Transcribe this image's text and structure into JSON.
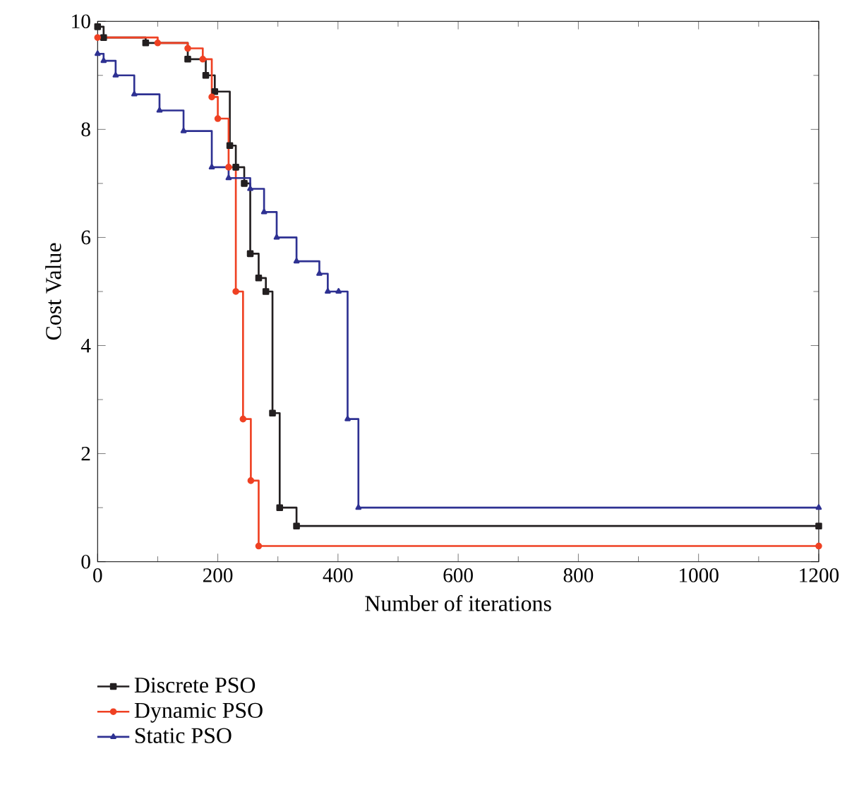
{
  "chart_data": {
    "type": "step",
    "xlabel": "Number of iterations",
    "ylabel": "Cost Value",
    "xlim": [
      0,
      1200
    ],
    "ylim": [
      0,
      10
    ],
    "xticks": [
      0,
      200,
      400,
      600,
      800,
      1000,
      1200
    ],
    "yticks": [
      0,
      2,
      4,
      6,
      8,
      10
    ],
    "legend": "bottom left",
    "grid": false,
    "series": [
      {
        "name": "Discrete PSO",
        "color": "#231f20",
        "marker": "square",
        "x": [
          0,
          10,
          80,
          150,
          180,
          195,
          220,
          230,
          244,
          254,
          268,
          280,
          291,
          303,
          331,
          1200
        ],
        "values": [
          9.9,
          9.7,
          9.6,
          9.3,
          9.0,
          8.7,
          7.7,
          7.3,
          7.0,
          5.7,
          5.25,
          5.0,
          2.75,
          1.0,
          0.66,
          0.66
        ]
      },
      {
        "name": "Dynamic PSO",
        "color": "#ef4123",
        "marker": "circle",
        "x": [
          0,
          100,
          150,
          175,
          190,
          200,
          218,
          230,
          242,
          255,
          268,
          1200
        ],
        "values": [
          9.7,
          9.6,
          9.5,
          9.3,
          8.6,
          8.2,
          7.3,
          5.0,
          2.64,
          1.5,
          0.29,
          0.29
        ]
      },
      {
        "name": "Static PSO",
        "color": "#2e3192",
        "marker": "triangle",
        "x": [
          0,
          10,
          30,
          61,
          103,
          143,
          190,
          218,
          254,
          277,
          298,
          331,
          369,
          383,
          401,
          416,
          434,
          1200
        ],
        "values": [
          9.4,
          9.27,
          9.0,
          8.65,
          8.35,
          7.97,
          7.3,
          7.1,
          6.9,
          6.47,
          6.0,
          5.56,
          5.33,
          5.0,
          5.0,
          2.64,
          1.0,
          1.0
        ]
      }
    ]
  }
}
